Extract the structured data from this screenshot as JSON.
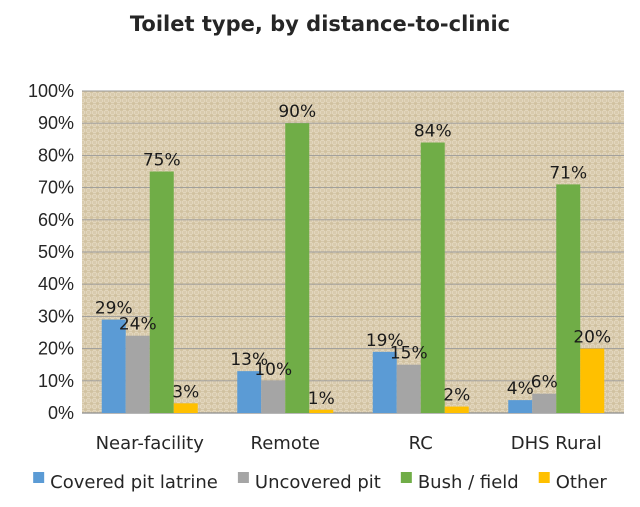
{
  "chart_data": {
    "type": "bar",
    "title": "Toilet type, by distance-to-clinic",
    "xlabel": "",
    "ylabel": "",
    "ylim": [
      0,
      100
    ],
    "yticks": [
      "0%",
      "10%",
      "20%",
      "30%",
      "40%",
      "50%",
      "60%",
      "70%",
      "80%",
      "90%",
      "100%"
    ],
    "categories": [
      "Near-facility",
      "Remote",
      "RC",
      "DHS Rural"
    ],
    "series": [
      {
        "name": "Covered pit latrine",
        "color": "#5B9BD5",
        "values": [
          29,
          13,
          19,
          4
        ],
        "labels": [
          "29%",
          "13%",
          "19%",
          "4%"
        ]
      },
      {
        "name": "Uncovered pit",
        "color": "#A5A5A5",
        "values": [
          24,
          10,
          15,
          6
        ],
        "labels": [
          "24%",
          "10%",
          "15%",
          "6%"
        ]
      },
      {
        "name": "Bush / field",
        "color": "#70AD47",
        "values": [
          75,
          90,
          84,
          71
        ],
        "labels": [
          "75%",
          "90%",
          "84%",
          "71%"
        ]
      },
      {
        "name": "Other",
        "color": "#FFC000",
        "values": [
          3,
          1,
          2,
          20
        ],
        "labels": [
          "3%",
          "1%",
          "2%",
          "20%"
        ]
      }
    ],
    "legend": "bottom",
    "grid": true,
    "plot_background": "burlap texture"
  }
}
